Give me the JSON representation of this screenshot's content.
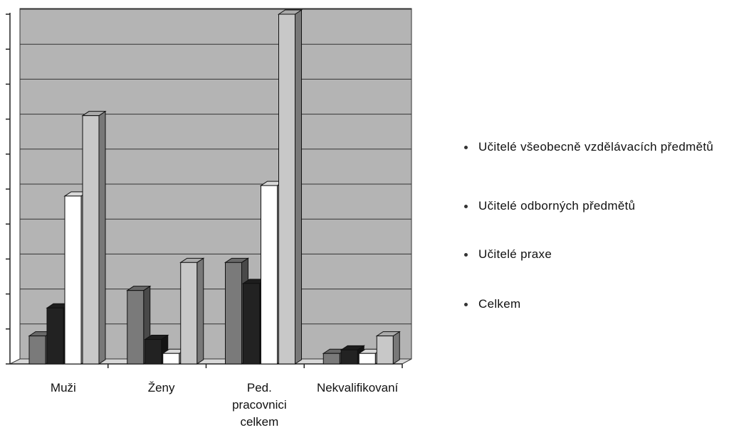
{
  "chart_data": {
    "type": "bar3d",
    "categories": [
      "Muži",
      "Ženy",
      "Ped. pracovnici celkem",
      "Nekvalifikovaní"
    ],
    "series": [
      {
        "name": "Učitelé všeobecně vzdělávacích předmětů",
        "color": "#7a7a7a",
        "values": [
          0.8,
          2.1,
          2.9,
          0.3
        ]
      },
      {
        "name": "Učitelé odborných předmětů",
        "color": "#222222",
        "values": [
          1.6,
          0.7,
          2.3,
          0.4
        ]
      },
      {
        "name": "Učitelé praxe",
        "color": "#ffffff",
        "values": [
          4.8,
          0.3,
          5.1,
          0.3
        ]
      },
      {
        "name": "Celkem",
        "color": "#c8c8c8",
        "values": [
          7.1,
          2.9,
          10.0,
          0.8
        ]
      }
    ],
    "ylim": [
      0,
      10
    ],
    "yticks": [
      0,
      1,
      2,
      3,
      4,
      5,
      6,
      7,
      8,
      9,
      10
    ],
    "grid": true,
    "legend": "right"
  }
}
